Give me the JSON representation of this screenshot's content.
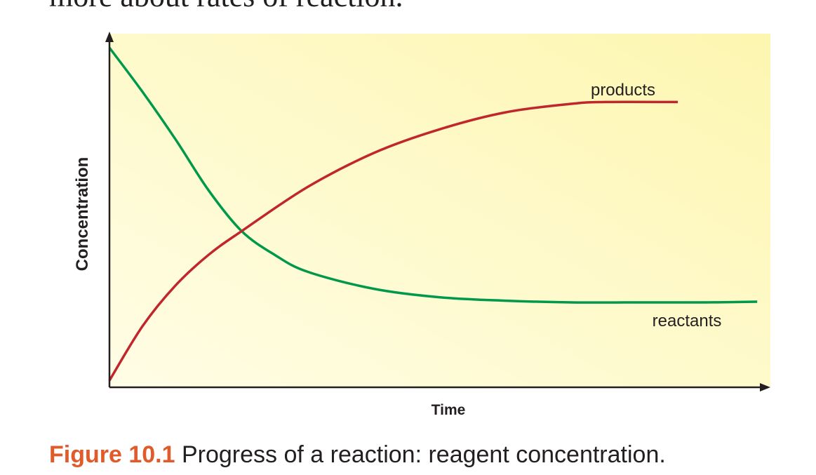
{
  "page": {
    "top_text": "more about rates of reaction.",
    "caption_number": "Figure 10.1",
    "caption_text": " Progress of a reaction: reagent concentration."
  },
  "chart_data": {
    "type": "line",
    "xlabel": "Time",
    "ylabel": "Concentration",
    "xlim": [
      0,
      10
    ],
    "ylim": [
      0,
      10
    ],
    "grid": false,
    "background": [
      "#fdf6b0",
      "#fffde6"
    ],
    "series": [
      {
        "name": "reactants",
        "color": "#00994c",
        "x": [
          0,
          0.5,
          1,
          1.5,
          2,
          2.5,
          3,
          4,
          5,
          6,
          7,
          8,
          9,
          9.8
        ],
        "y": [
          10,
          8.7,
          7.3,
          5.8,
          4.6,
          3.9,
          3.4,
          2.9,
          2.65,
          2.55,
          2.5,
          2.5,
          2.5,
          2.52
        ]
      },
      {
        "name": "products",
        "color": "#c0272d",
        "x": [
          0,
          0.5,
          1,
          1.5,
          2,
          3,
          4,
          5,
          6,
          7,
          7.5,
          8.6
        ],
        "y": [
          0.2,
          1.8,
          3.0,
          3.9,
          4.6,
          5.9,
          6.9,
          7.6,
          8.1,
          8.35,
          8.4,
          8.4
        ]
      }
    ]
  }
}
